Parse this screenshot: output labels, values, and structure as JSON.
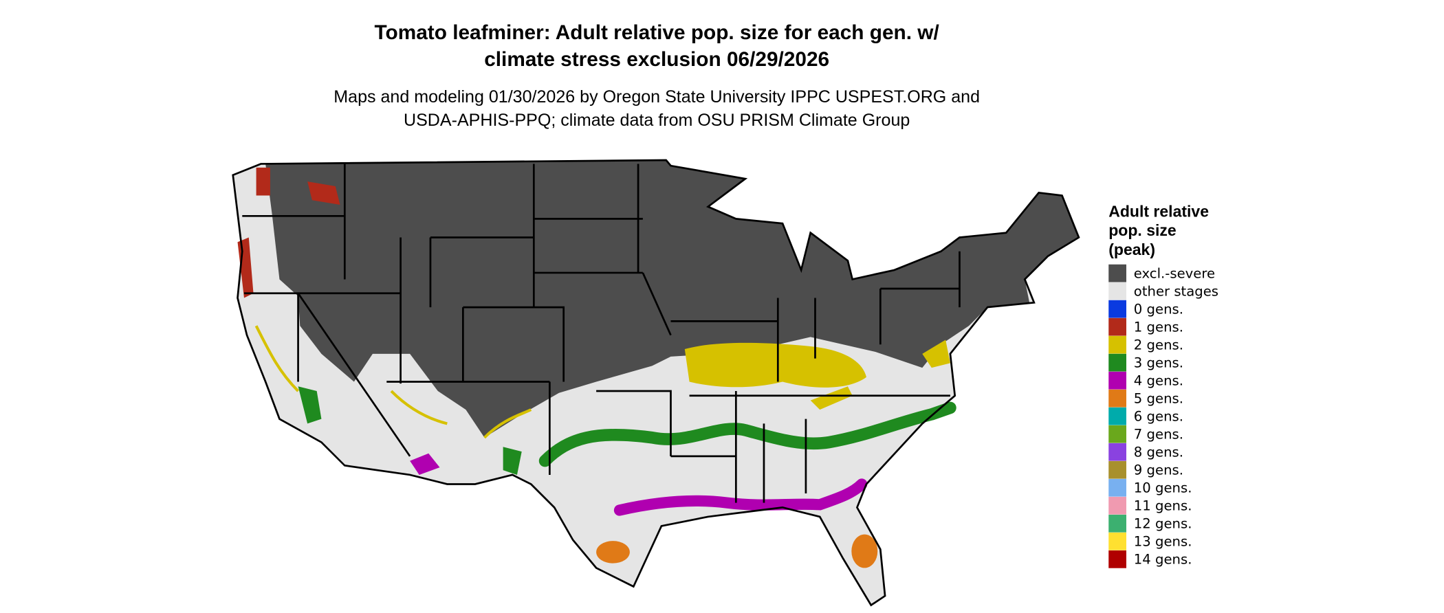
{
  "header": {
    "title_lines": [
      "Tomato leafminer: Adult relative pop. size for each gen. w/",
      "climate stress exclusion 06/29/2026"
    ],
    "subtitle_lines": [
      "Maps and modeling 01/30/2026 by Oregon State University IPPC USPEST.ORG and",
      "USDA-APHIS-PPQ; climate data from OSU PRISM Climate Group"
    ]
  },
  "legend": {
    "title_lines": [
      "Adult relative",
      "pop. size",
      "(peak)"
    ],
    "items": [
      {
        "label": "excl.-severe",
        "color": "#4d4d4d"
      },
      {
        "label": "other stages",
        "color": "#e5e5e5"
      },
      {
        "label": "0 gens.",
        "color": "#0a3ae0"
      },
      {
        "label": "1 gens.",
        "color": "#b22a1a"
      },
      {
        "label": "2 gens.",
        "color": "#d6c100"
      },
      {
        "label": "3 gens.",
        "color": "#1f8a1f"
      },
      {
        "label": "4 gens.",
        "color": "#b000b0"
      },
      {
        "label": "5 gens.",
        "color": "#e07a17"
      },
      {
        "label": "6 gens.",
        "color": "#00abab"
      },
      {
        "label": "7 gens.",
        "color": "#6aa81c"
      },
      {
        "label": "8 gens.",
        "color": "#8a42e0"
      },
      {
        "label": "9 gens.",
        "color": "#a8902c"
      },
      {
        "label": "10 gens.",
        "color": "#78b0f0"
      },
      {
        "label": "11 gens.",
        "color": "#f09ab0"
      },
      {
        "label": "12 gens.",
        "color": "#3cb070"
      },
      {
        "label": "13 gens.",
        "color": "#ffe030"
      },
      {
        "label": "14 gens.",
        "color": "#b00000"
      }
    ]
  }
}
